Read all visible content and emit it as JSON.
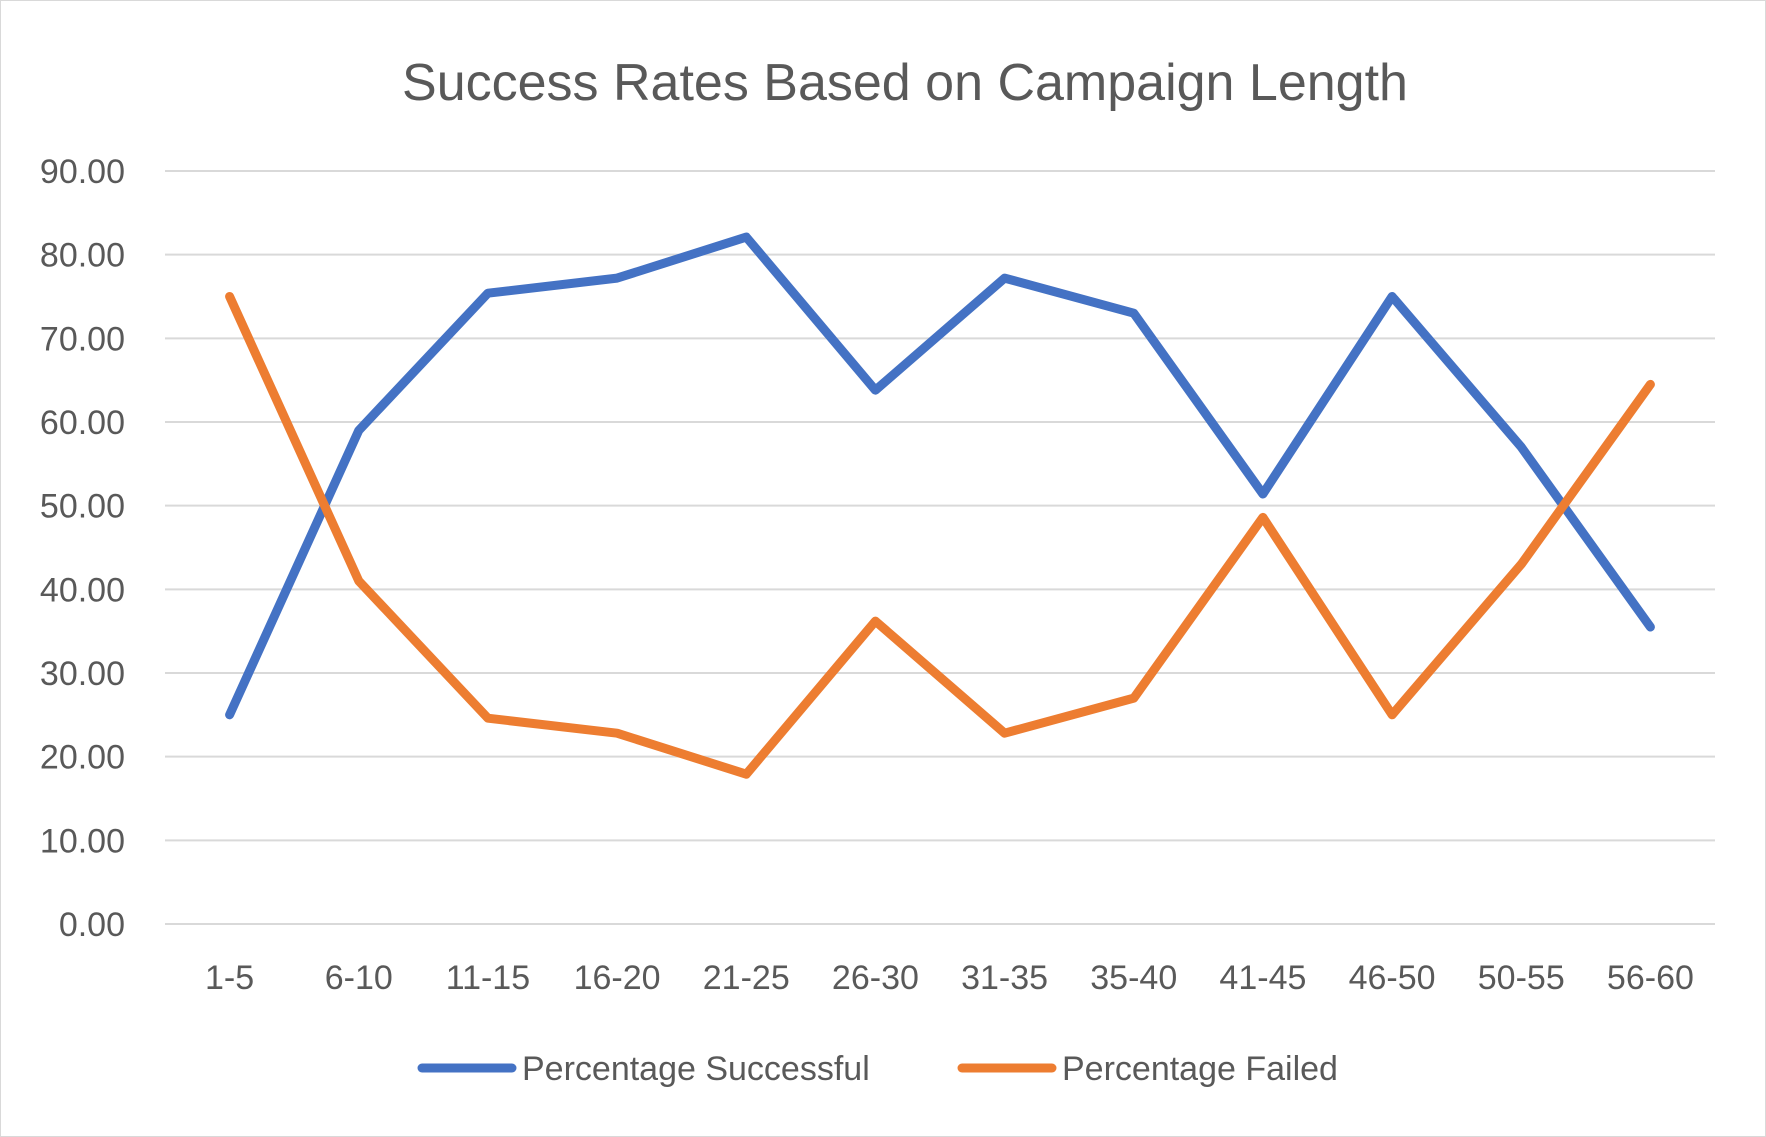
{
  "chart_data": {
    "type": "line",
    "title": "Success Rates Based on Campaign Length",
    "xlabel": "",
    "ylabel": "",
    "categories": [
      "1-5",
      "6-10",
      "11-15",
      "16-20",
      "21-25",
      "26-30",
      "31-35",
      "35-40",
      "41-45",
      "46-50",
      "50-55",
      "56-60"
    ],
    "ylim": [
      0,
      90
    ],
    "yticks": [
      "0.00",
      "10.00",
      "20.00",
      "30.00",
      "40.00",
      "50.00",
      "60.00",
      "70.00",
      "80.00",
      "90.00"
    ],
    "grid": true,
    "legend_position": "bottom",
    "series": [
      {
        "name": "Percentage Successful",
        "color": "#4472c4",
        "values": [
          25.0,
          59.0,
          75.4,
          77.2,
          82.1,
          63.8,
          77.2,
          73.0,
          51.4,
          75.0,
          57.0,
          35.5
        ]
      },
      {
        "name": "Percentage Failed",
        "color": "#ed7d31",
        "values": [
          75.0,
          41.0,
          24.6,
          22.8,
          17.9,
          36.2,
          22.8,
          27.0,
          48.6,
          25.0,
          43.0,
          64.5
        ]
      }
    ]
  }
}
